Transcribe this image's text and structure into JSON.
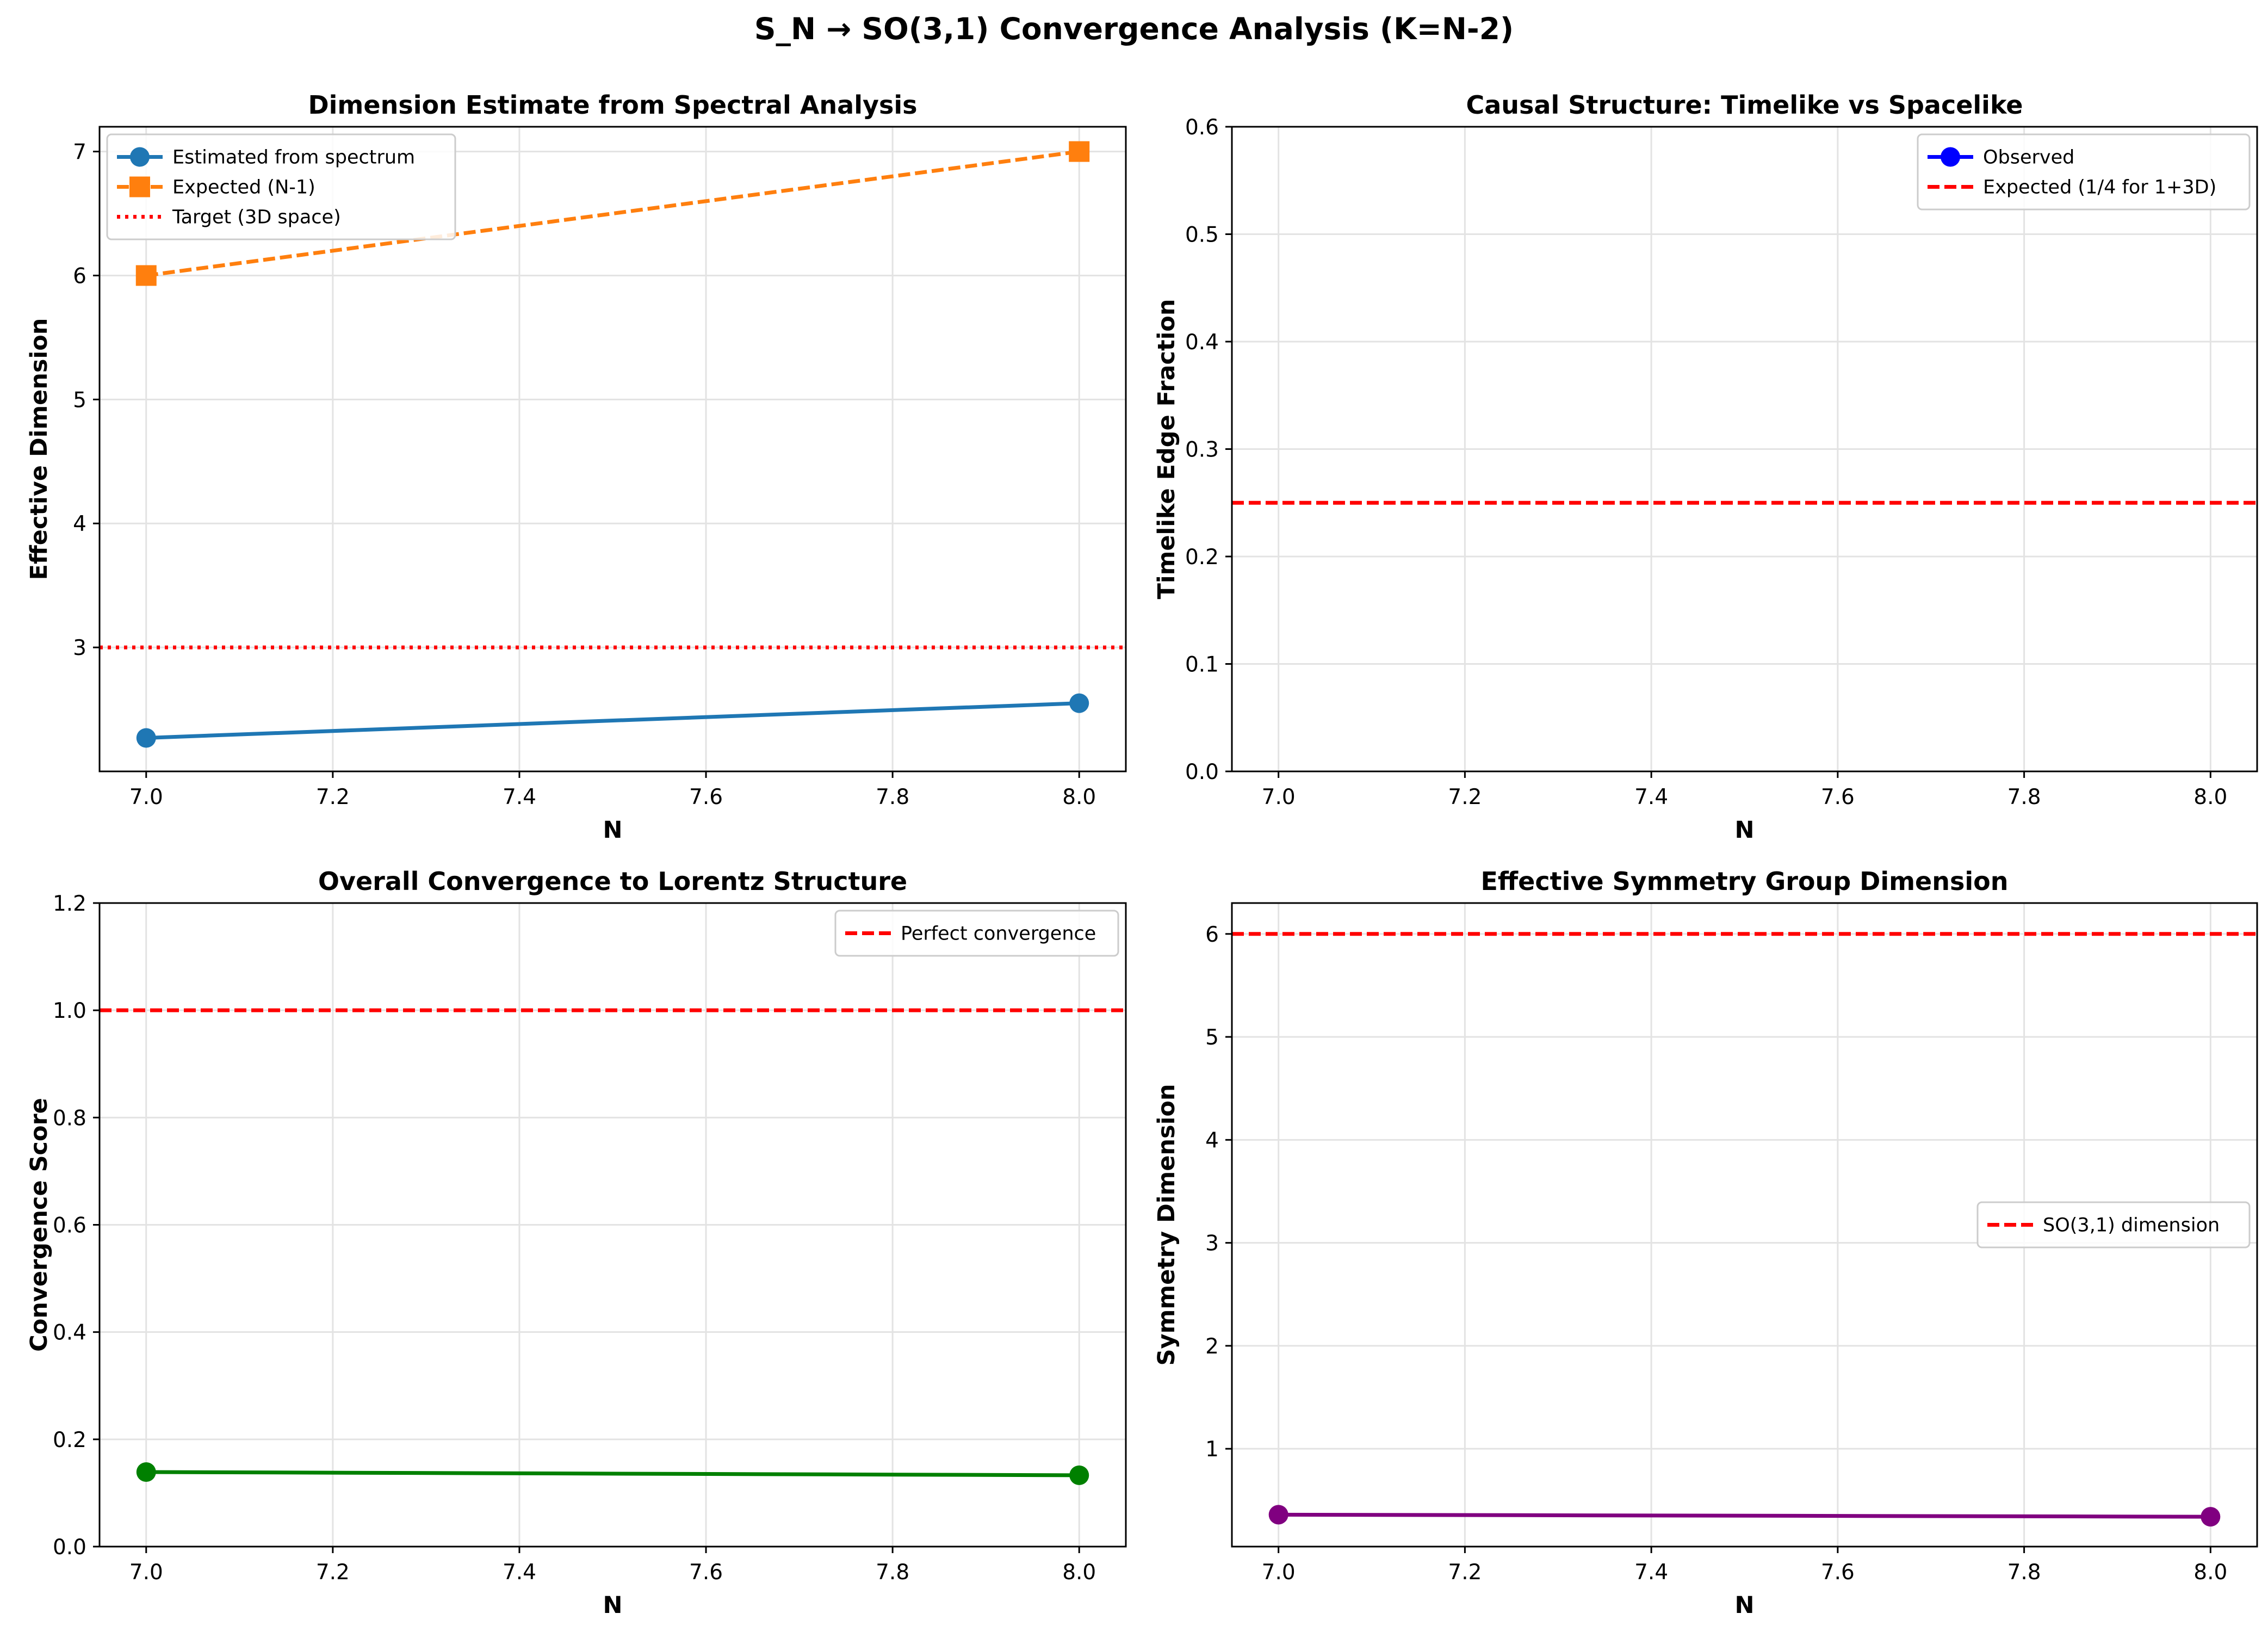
{
  "figure": {
    "title": "S_N → SO(3,1) Convergence Analysis (K=N-2)"
  },
  "chart_data": [
    {
      "type": "line",
      "title": "Dimension Estimate from Spectral Analysis",
      "xlabel": "N",
      "ylabel": "Effective Dimension",
      "xlim": [
        6.95,
        8.05
      ],
      "ylim": [
        2.0,
        7.2
      ],
      "xticks": [
        7.0,
        7.2,
        7.4,
        7.6,
        7.8,
        8.0
      ],
      "yticks": [
        3,
        4,
        5,
        6,
        7
      ],
      "grid": true,
      "legend": "upper left",
      "series": [
        {
          "name": "Estimated from spectrum",
          "x": [
            7,
            8
          ],
          "y": [
            2.27,
            2.55
          ],
          "color": "#1f77b4",
          "style": "solid",
          "marker": "circle"
        },
        {
          "name": "Expected (N-1)",
          "x": [
            7,
            8
          ],
          "y": [
            6,
            7
          ],
          "color": "#ff7f0e",
          "style": "dashed",
          "marker": "square"
        }
      ],
      "hlines": [
        {
          "name": "Target (3D space)",
          "y": 3,
          "color": "#ff0000",
          "style": "dotted"
        }
      ]
    },
    {
      "type": "line",
      "title": "Causal Structure: Timelike vs Spacelike",
      "xlabel": "N",
      "ylabel": "Timelike Edge Fraction",
      "xlim": [
        6.95,
        8.05
      ],
      "ylim": [
        0,
        0.6
      ],
      "xticks": [
        7.0,
        7.2,
        7.4,
        7.6,
        7.8,
        8.0
      ],
      "yticks": [
        0.0,
        0.1,
        0.2,
        0.3,
        0.4,
        0.5,
        0.6
      ],
      "grid": true,
      "legend": "upper right",
      "series": [
        {
          "name": "Observed",
          "x": [],
          "y": [],
          "color": "#0000ff",
          "style": "solid",
          "marker": "circle"
        }
      ],
      "hlines": [
        {
          "name": "Expected (1/4 for 1+3D)",
          "y": 0.25,
          "color": "#ff0000",
          "style": "dashed"
        }
      ]
    },
    {
      "type": "line",
      "title": "Overall Convergence to Lorentz Structure",
      "xlabel": "N",
      "ylabel": "Convergence Score",
      "xlim": [
        6.95,
        8.05
      ],
      "ylim": [
        0,
        1.2
      ],
      "xticks": [
        7.0,
        7.2,
        7.4,
        7.6,
        7.8,
        8.0
      ],
      "yticks": [
        0.0,
        0.2,
        0.4,
        0.6,
        0.8,
        1.0,
        1.2
      ],
      "grid": true,
      "legend": "upper right",
      "series": [
        {
          "x": [
            7,
            8
          ],
          "y": [
            0.139,
            0.133
          ],
          "color": "#008000",
          "style": "solid",
          "marker": "circle"
        }
      ],
      "hlines": [
        {
          "name": "Perfect convergence",
          "y": 1.0,
          "color": "#ff0000",
          "style": "dashed"
        }
      ]
    },
    {
      "type": "line",
      "title": "Effective Symmetry Group Dimension",
      "xlabel": "N",
      "ylabel": "Symmetry Dimension",
      "xlim": [
        6.95,
        8.05
      ],
      "ylim": [
        0.05,
        6.3
      ],
      "xticks": [
        7.0,
        7.2,
        7.4,
        7.6,
        7.8,
        8.0
      ],
      "yticks": [
        1,
        2,
        3,
        4,
        5,
        6
      ],
      "grid": true,
      "legend": "center right",
      "series": [
        {
          "x": [
            7,
            8
          ],
          "y": [
            0.36,
            0.34
          ],
          "color": "#800080",
          "style": "solid",
          "marker": "circle"
        }
      ],
      "hlines": [
        {
          "name": "SO(3,1) dimension",
          "y": 6,
          "color": "#ff0000",
          "style": "dashed"
        }
      ]
    }
  ]
}
